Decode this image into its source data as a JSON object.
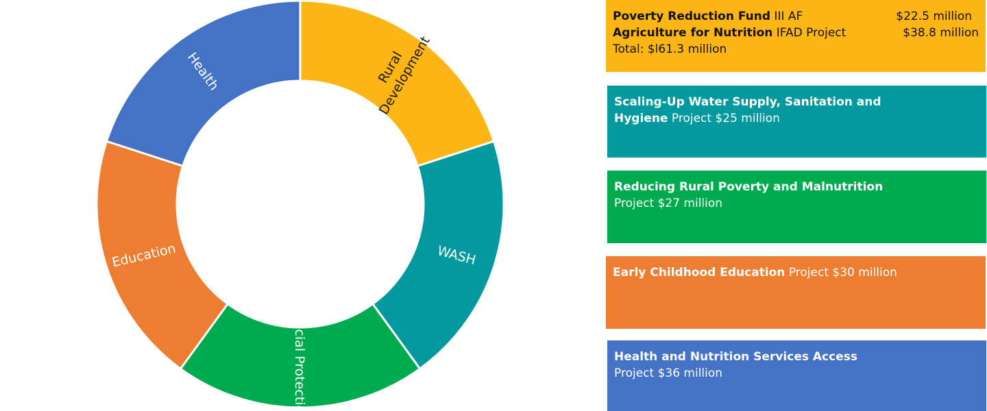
{
  "colors": {
    "rural_development": "#FBB515",
    "wash": "#03999F",
    "social_protection": "#00AB4F",
    "education": "#ED7D31",
    "health": "#4472C4"
  },
  "donut": {
    "segments": [
      {
        "key": "rural_development",
        "lines": [
          "Rural",
          "Development"
        ],
        "color": "#FBB515",
        "share": 0.2
      },
      {
        "key": "wash",
        "lines": [
          "WASH"
        ],
        "color": "#03999F",
        "share": 0.2
      },
      {
        "key": "social_protection",
        "lines": [
          "Social Protection"
        ],
        "color": "#00AB4F",
        "share": 0.2
      },
      {
        "key": "education",
        "lines": [
          "Education"
        ],
        "color": "#ED7D31",
        "share": 0.2
      },
      {
        "key": "health",
        "lines": [
          "Health"
        ],
        "color": "#4472C4",
        "share": 0.2
      }
    ]
  },
  "cards": {
    "rural": {
      "row1_bold": "Poverty Reduction Fund",
      "row1_rest": " III AF",
      "row1_amount": "$22.5 million",
      "row2_bold": "Agriculture for Nutrition",
      "row2_rest": " IFAD Project",
      "row2_amount": "$38.8 million",
      "total": "Total: $l61.3 million"
    },
    "wash": {
      "line1_bold": "Scaling-Up Water Supply, Sanitation and",
      "line2_bold": "Hygiene",
      "line2_rest": " Project $25 million"
    },
    "social": {
      "line1_bold": "Reducing Rural Poverty and Malnutrition",
      "line2": "Project $27 million"
    },
    "education": {
      "line1_bold": "Early Childhood Education",
      "line1_rest": " Project $30 million"
    },
    "health": {
      "line1_bold": "Health and Nutrition Services Access",
      "line2": "Project $36 million"
    }
  }
}
